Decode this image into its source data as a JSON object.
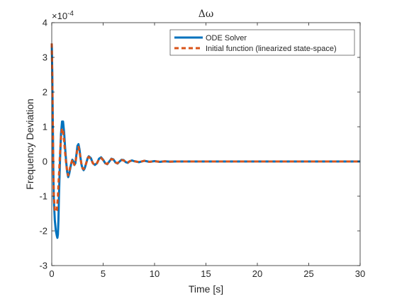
{
  "chart_data": {
    "type": "line",
    "title": "Δω",
    "xlabel": "Time [s]",
    "ylabel": "Frequency Deviation",
    "exponent_label": "×10",
    "exponent_power": "-4",
    "xlim": [
      0,
      30
    ],
    "ylim": [
      -3,
      4
    ],
    "xticks": [
      "0",
      "5",
      "10",
      "15",
      "20",
      "25",
      "30"
    ],
    "yticks": [
      "-3",
      "-2",
      "-1",
      "0",
      "1",
      "2",
      "3",
      "4"
    ],
    "legend_position": "top-right",
    "grid": false,
    "series": [
      {
        "name": "ODE Solver",
        "color": "#0072BD",
        "style": "solid",
        "x": [
          0,
          0.05,
          0.1,
          0.15,
          0.2,
          0.3,
          0.4,
          0.5,
          0.55,
          0.6,
          0.65,
          0.7,
          0.8,
          0.9,
          1.0,
          1.1,
          1.2,
          1.3,
          1.4,
          1.5,
          1.6,
          1.7,
          1.8,
          1.9,
          2.0,
          2.1,
          2.2,
          2.3,
          2.4,
          2.5,
          2.6,
          2.7,
          2.8,
          2.9,
          3.0,
          3.1,
          3.2,
          3.3,
          3.4,
          3.5,
          3.6,
          3.8,
          4.0,
          4.2,
          4.4,
          4.6,
          4.8,
          5.0,
          5.2,
          5.4,
          5.6,
          5.8,
          6.0,
          6.2,
          6.4,
          6.6,
          6.8,
          7.0,
          7.2,
          7.4,
          7.6,
          7.8,
          8.0,
          8.5,
          9.0,
          9.5,
          10.0,
          10.5,
          11.0,
          11.5,
          12.0,
          13.0,
          14.0,
          15.0,
          20.0,
          25.0,
          30.0
        ],
        "y": [
          3.4,
          2.6,
          1.2,
          -0.2,
          -1.1,
          -1.7,
          -2.0,
          -2.15,
          -2.2,
          -2.1,
          -1.7,
          -1.0,
          0.0,
          0.8,
          1.15,
          1.15,
          0.85,
          0.4,
          0.0,
          -0.3,
          -0.45,
          -0.35,
          -0.2,
          -0.05,
          0.05,
          0.0,
          -0.1,
          -0.05,
          0.2,
          0.45,
          0.5,
          0.35,
          0.1,
          -0.1,
          -0.2,
          -0.25,
          -0.2,
          -0.1,
          0.0,
          0.1,
          0.15,
          0.1,
          -0.05,
          -0.1,
          -0.05,
          0.08,
          0.12,
          0.05,
          -0.05,
          -0.08,
          0.0,
          0.08,
          0.06,
          -0.03,
          -0.06,
          0.0,
          0.05,
          0.04,
          -0.02,
          -0.04,
          0.01,
          0.03,
          0.01,
          -0.02,
          0.02,
          -0.01,
          0.01,
          -0.01,
          0.005,
          -0.005,
          0.0,
          0.0,
          0.0,
          0.0,
          0.0,
          0.0,
          0.0
        ]
      },
      {
        "name": "Initial function (linearized state-space)",
        "color": "#D95319",
        "style": "dashed",
        "x": [
          0,
          0.05,
          0.1,
          0.15,
          0.2,
          0.3,
          0.4,
          0.5,
          0.6,
          0.7,
          0.8,
          0.9,
          1.0,
          1.1,
          1.2,
          1.3,
          1.4,
          1.5,
          1.6,
          1.7,
          1.8,
          1.9,
          2.0,
          2.1,
          2.2,
          2.3,
          2.4,
          2.5,
          2.6,
          2.7,
          2.8,
          2.9,
          3.0,
          3.1,
          3.2,
          3.3,
          3.4,
          3.5,
          3.6,
          3.8,
          4.0,
          4.2,
          4.4,
          4.6,
          4.8,
          5.0,
          5.2,
          5.4,
          5.6,
          5.8,
          6.0,
          6.2,
          6.4,
          6.6,
          6.8,
          7.0,
          7.2,
          7.4,
          7.6,
          7.8,
          8.0,
          8.5,
          9.0,
          9.5,
          10.0,
          10.5,
          11.0,
          11.5,
          12.0,
          13.0,
          14.0,
          15.0,
          20.0,
          25.0,
          30.0
        ],
        "y": [
          3.4,
          2.5,
          1.1,
          -0.2,
          -1.0,
          -1.4,
          -1.45,
          -1.4,
          -1.0,
          -0.4,
          0.2,
          0.7,
          0.95,
          0.9,
          0.6,
          0.25,
          -0.05,
          -0.3,
          -0.4,
          -0.3,
          -0.15,
          -0.05,
          0.05,
          0.0,
          -0.1,
          -0.05,
          0.15,
          0.4,
          0.42,
          0.3,
          0.08,
          -0.1,
          -0.2,
          -0.22,
          -0.18,
          -0.1,
          0.0,
          0.1,
          0.13,
          0.08,
          -0.05,
          -0.1,
          -0.05,
          0.07,
          0.1,
          0.04,
          -0.05,
          -0.07,
          0.0,
          0.07,
          0.05,
          -0.03,
          -0.05,
          0.0,
          0.04,
          0.03,
          -0.02,
          -0.03,
          0.01,
          0.02,
          0.01,
          -0.02,
          0.02,
          -0.01,
          0.01,
          -0.01,
          0.005,
          -0.005,
          0.0,
          0.0,
          0.0,
          0.0,
          0.0,
          0.0,
          0.0
        ]
      }
    ]
  }
}
